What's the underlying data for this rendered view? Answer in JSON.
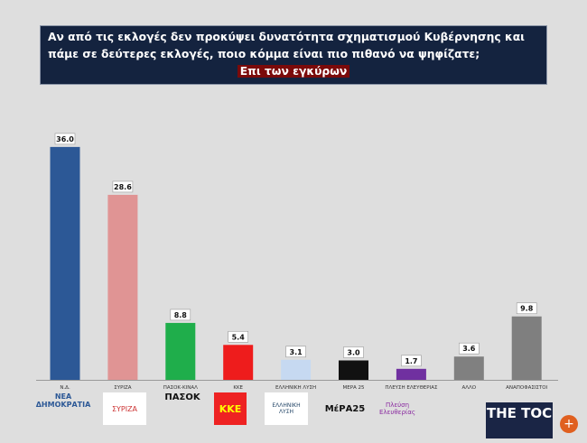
{
  "chart_data": {
    "type": "bar",
    "title": "Αν από τις εκλογές δεν προκύψει δυνατότητα σχηματισμού Κυβέρνησης και πάμε σε δεύτερες εκλογές, ποιο κόμμα είναι πιο πιθανό να ψηφίζατε;",
    "subtitle": "Επι των εγκύρων",
    "categories": [
      "Ν.Δ.",
      "ΣΥΡΙΖΑ",
      "ΠΑΣΟΚ-ΚΙΝΑΛ",
      "ΚΚΕ",
      "ΕΛΛΗΝΙΚΗ ΛΥΣΗ",
      "ΜΕΡΑ 25",
      "ΠΛΕΥΣΗ ΕΛΕΥΘΕΡΙΑΣ",
      "ΑΛΛΟ",
      "ΑΝΑΠΟΦΑΣΙΣΤΟΙ"
    ],
    "values": [
      36.0,
      28.6,
      8.8,
      5.4,
      3.1,
      3.0,
      1.7,
      3.6,
      9.8
    ],
    "colors": [
      "#2c5896",
      "#e09494",
      "#1fae4b",
      "#ee1c1c",
      "#c6d9f1",
      "#111111",
      "#7030a0",
      "#808080",
      "#7f7f7f"
    ],
    "grid": false,
    "legend": "none"
  },
  "logos": [
    "ΝΕΑ ΔΗΜΟΚΡΑΤΙΑ",
    "ΣΥΡΙΖΑ",
    "ΠΑΣΟΚ",
    "ΚΚΕ",
    "ΕΛΛΗΝΙΚΗ ΛΥΣΗ",
    "ΜέΡΑ25",
    "Πλεύση Ελευθερίας"
  ],
  "brand": {
    "name": "THE TOC",
    "icon": "zoom-in-icon"
  }
}
